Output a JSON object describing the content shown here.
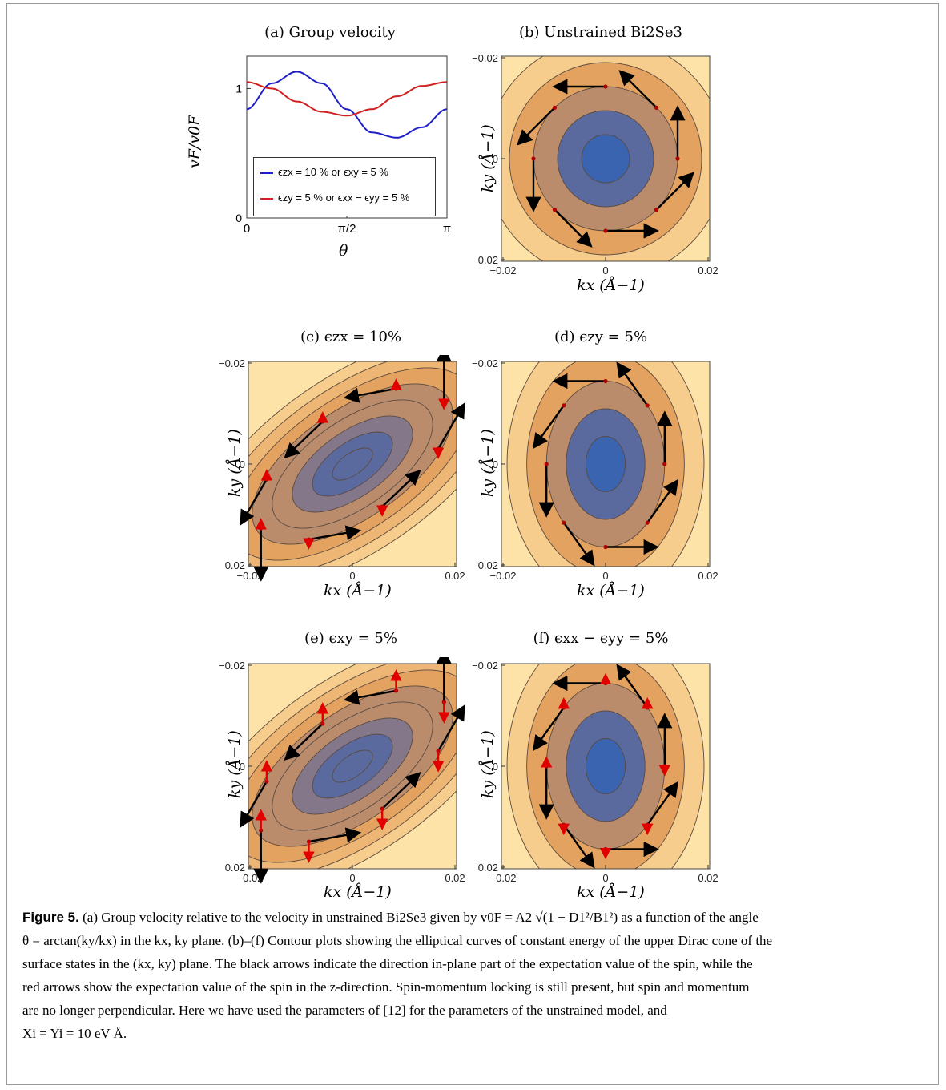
{
  "figure": {
    "panel_a": {
      "title": "(a) Group velocity",
      "ylabel": "vF/v0F",
      "xlabel": "θ",
      "yticks": [
        "0",
        "1"
      ],
      "xticks": [
        "0",
        "π/2",
        "π"
      ],
      "legend": [
        {
          "label": "ϵzx = 10 % or ϵxy = 5 %",
          "color": "#1f1fc8"
        },
        {
          "label": "ϵzy = 5 % or ϵxx − ϵyy = 5 %",
          "color": "#d21f1f"
        }
      ]
    },
    "contour_panels": [
      {
        "id": "b",
        "title": "(b) Unstrained Bi2Se3"
      },
      {
        "id": "c",
        "title": "(c) ϵzx = 10%"
      },
      {
        "id": "d",
        "title": "(d) ϵzy = 5%"
      },
      {
        "id": "e",
        "title": "(e) ϵxy = 5%"
      },
      {
        "id": "f",
        "title": "(f) ϵxx − ϵyy = 5%"
      }
    ],
    "contour_axes": {
      "xlabel": "kx (Å−1)",
      "ylabel": "ky (Å−1)",
      "ticks": [
        "−0.02",
        "0",
        "0.02"
      ]
    },
    "colors": {
      "contour_outer": "#fde3a7",
      "contour_inner": "#3a63b0",
      "spin_inplane_arrow": "#000000",
      "spin_z_arrow": "#e00000"
    }
  },
  "chart_data": [
    {
      "type": "line",
      "title": "(a) Group velocity",
      "xlabel": "θ",
      "ylabel": "vF/v0F",
      "xlim": [
        0,
        3.1416
      ],
      "ylim": [
        0,
        1.25
      ],
      "x": [
        0,
        0.393,
        0.785,
        1.178,
        1.571,
        1.963,
        2.356,
        2.749,
        3.1416
      ],
      "series": [
        {
          "name": "ϵzx = 10 % or ϵxy = 5 %",
          "values": [
            0.84,
            1.04,
            1.13,
            1.04,
            0.84,
            0.66,
            0.62,
            0.7,
            0.84
          ]
        },
        {
          "name": "ϵzy = 5 % or ϵxx − ϵyy = 5 %",
          "values": [
            1.05,
            1.0,
            0.9,
            0.82,
            0.79,
            0.84,
            0.94,
            1.02,
            1.05
          ]
        }
      ]
    }
  ],
  "caption": {
    "label": "Figure 5.",
    "line1": "(a) Group velocity relative to the velocity in unstrained Bi2Se3 given by v0F = A2 √(1 − D1²/B1²) as a function of the angle",
    "line2": "θ = arctan(ky/kx) in the kx, ky plane. (b)–(f) Contour plots showing the elliptical curves of constant energy of the upper Dirac cone of the",
    "line3": "surface states in the (kx, ky) plane. The black arrows indicate the direction in-plane part of the expectation value of the spin, while the",
    "line4": "red arrows show the expectation value of the spin in the z-direction. Spin-momentum locking is still present, but spin and momentum",
    "line5": "are no longer perpendicular. Here we have used the parameters of [12] for the parameters of the unstrained model, and",
    "line6": "Xi = Yi = 10 eV Å."
  }
}
